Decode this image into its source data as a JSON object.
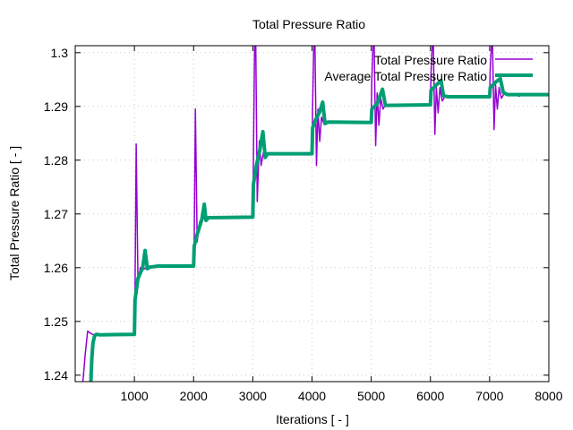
{
  "chart_data": {
    "type": "line",
    "title": "Total Pressure Ratio",
    "xlabel": "Iterations [ - ]",
    "ylabel": "Total Pressure Ratio [ - ]",
    "xlim": [
      0,
      8000
    ],
    "ylim": [
      1.2388,
      1.3013
    ],
    "x_ticks": [
      1000,
      2000,
      3000,
      4000,
      5000,
      6000,
      7000,
      8000
    ],
    "x_tick_labels": [
      "1000",
      "2000",
      "3000",
      "4000",
      "5000",
      "6000",
      "7000",
      "8000"
    ],
    "y_ticks": [
      1.24,
      1.25,
      1.26,
      1.27,
      1.28,
      1.29,
      1.3
    ],
    "y_tick_labels": [
      "1.24",
      "1.25",
      "1.26",
      "1.27",
      "1.28",
      "1.29",
      "1.3"
    ],
    "grid": true,
    "legend_position": "top-right",
    "series": [
      {
        "name": "Total Pressure Ratio",
        "color": "#9400D3",
        "points": [
          [
            130,
            1.2388
          ],
          [
            170,
            1.244
          ],
          [
            210,
            1.2482
          ],
          [
            260,
            1.2478
          ],
          [
            330,
            1.2474
          ],
          [
            400,
            1.2476
          ],
          [
            1000,
            1.2476
          ],
          [
            1010,
            1.255
          ],
          [
            1030,
            1.283
          ],
          [
            1060,
            1.2573
          ],
          [
            1100,
            1.26
          ],
          [
            1140,
            1.2596
          ],
          [
            1200,
            1.26
          ],
          [
            2000,
            1.2603
          ],
          [
            2010,
            1.265
          ],
          [
            2030,
            1.2895
          ],
          [
            2060,
            1.2648
          ],
          [
            2100,
            1.2685
          ],
          [
            2140,
            1.269
          ],
          [
            2200,
            1.2693
          ],
          [
            3000,
            1.2694
          ],
          [
            3010,
            1.28
          ],
          [
            3030,
            1.3013
          ],
          [
            3050,
            1.3013
          ],
          [
            3075,
            1.2723
          ],
          [
            3110,
            1.2836
          ],
          [
            3140,
            1.279
          ],
          [
            3180,
            1.2815
          ],
          [
            3230,
            1.281
          ],
          [
            4000,
            1.281
          ],
          [
            4010,
            1.29
          ],
          [
            4030,
            1.3013
          ],
          [
            4050,
            1.3013
          ],
          [
            4075,
            1.279
          ],
          [
            4100,
            1.2895
          ],
          [
            4130,
            1.2835
          ],
          [
            4160,
            1.288
          ],
          [
            4200,
            1.2868
          ],
          [
            4260,
            1.2872
          ],
          [
            5000,
            1.287
          ],
          [
            5010,
            1.295
          ],
          [
            5030,
            1.3013
          ],
          [
            5050,
            1.3013
          ],
          [
            5075,
            1.2827
          ],
          [
            5100,
            1.2925
          ],
          [
            5130,
            1.2865
          ],
          [
            5160,
            1.2915
          ],
          [
            5200,
            1.2895
          ],
          [
            5250,
            1.2905
          ],
          [
            5300,
            1.29
          ],
          [
            6000,
            1.2902
          ],
          [
            6010,
            1.296
          ],
          [
            6030,
            1.3013
          ],
          [
            6050,
            1.3013
          ],
          [
            6075,
            1.2848
          ],
          [
            6100,
            1.2935
          ],
          [
            6130,
            1.2888
          ],
          [
            6160,
            1.2935
          ],
          [
            6200,
            1.291
          ],
          [
            6250,
            1.292
          ],
          [
            6300,
            1.2916
          ],
          [
            7000,
            1.2917
          ],
          [
            7010,
            1.297
          ],
          [
            7030,
            1.3013
          ],
          [
            7050,
            1.3013
          ],
          [
            7075,
            1.2857
          ],
          [
            7100,
            1.294
          ],
          [
            7130,
            1.2895
          ],
          [
            7160,
            1.2935
          ],
          [
            7200,
            1.2915
          ],
          [
            7250,
            1.2925
          ],
          [
            7300,
            1.292
          ],
          [
            7400,
            1.2923
          ],
          [
            7500,
            1.2919
          ],
          [
            7600,
            1.2924
          ],
          [
            7700,
            1.292
          ],
          [
            7800,
            1.2923
          ],
          [
            7900,
            1.2921
          ],
          [
            8000,
            1.2922
          ]
        ]
      },
      {
        "name": "Average Total Pressure Ratio",
        "color": "#009E73",
        "points": [
          [
            265,
            1.2388
          ],
          [
            280,
            1.243
          ],
          [
            300,
            1.246
          ],
          [
            330,
            1.2474
          ],
          [
            360,
            1.2476
          ],
          [
            420,
            1.2475
          ],
          [
            1000,
            1.2476
          ],
          [
            1010,
            1.254
          ],
          [
            1060,
            1.258
          ],
          [
            1140,
            1.26
          ],
          [
            1180,
            1.2632
          ],
          [
            1220,
            1.2598
          ],
          [
            1260,
            1.2601
          ],
          [
            1400,
            1.2603
          ],
          [
            2000,
            1.2603
          ],
          [
            2010,
            1.264
          ],
          [
            2060,
            1.2662
          ],
          [
            2140,
            1.269
          ],
          [
            2180,
            1.2718
          ],
          [
            2210,
            1.2688
          ],
          [
            2250,
            1.2693
          ],
          [
            3000,
            1.2694
          ],
          [
            3010,
            1.2755
          ],
          [
            3060,
            1.279
          ],
          [
            3120,
            1.282
          ],
          [
            3170,
            1.2853
          ],
          [
            3210,
            1.2805
          ],
          [
            3250,
            1.2812
          ],
          [
            4000,
            1.2812
          ],
          [
            4010,
            1.286
          ],
          [
            4060,
            1.2875
          ],
          [
            4130,
            1.289
          ],
          [
            4180,
            1.2908
          ],
          [
            4220,
            1.2868
          ],
          [
            4270,
            1.2871
          ],
          [
            5000,
            1.287
          ],
          [
            5010,
            1.2895
          ],
          [
            5100,
            1.2905
          ],
          [
            5190,
            1.2932
          ],
          [
            5240,
            1.2902
          ],
          [
            5300,
            1.2902
          ],
          [
            6000,
            1.2903
          ],
          [
            6010,
            1.293
          ],
          [
            6100,
            1.294
          ],
          [
            6180,
            1.2948
          ],
          [
            6220,
            1.292
          ],
          [
            6300,
            1.2918
          ],
          [
            7000,
            1.2918
          ],
          [
            7010,
            1.2935
          ],
          [
            7100,
            1.2945
          ],
          [
            7180,
            1.2952
          ],
          [
            7230,
            1.2926
          ],
          [
            7300,
            1.2922
          ],
          [
            8000,
            1.2922
          ]
        ]
      }
    ]
  }
}
